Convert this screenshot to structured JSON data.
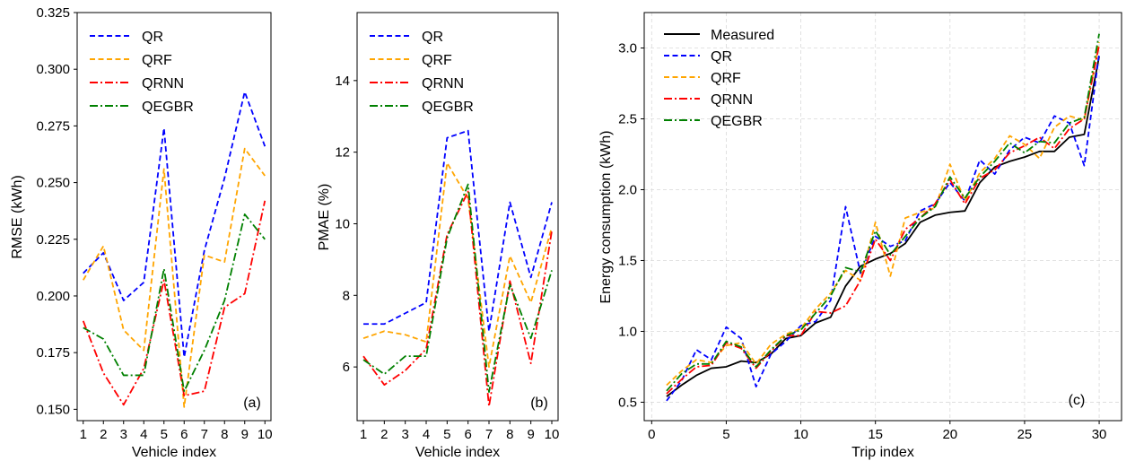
{
  "chart_data": [
    {
      "type": "line",
      "panel": "(a)",
      "xlabel": "Vehicle index",
      "ylabel": "RMSE (kWh)",
      "xlim": [
        0.7,
        10.3
      ],
      "ylim": [
        0.145,
        0.325
      ],
      "xticks": [
        1,
        2,
        3,
        4,
        5,
        6,
        7,
        8,
        9,
        10
      ],
      "yticks": [
        0.15,
        0.175,
        0.2,
        0.225,
        0.25,
        0.275,
        0.3,
        0.325
      ],
      "ytick_labels": [
        "0.150",
        "0.175",
        "0.200",
        "0.225",
        "0.250",
        "0.275",
        "0.300",
        "0.325"
      ],
      "grid": false,
      "legend": "top-left",
      "x": [
        1,
        2,
        3,
        4,
        5,
        6,
        7,
        8,
        9,
        10
      ],
      "series": [
        {
          "name": "QR",
          "color": "#0000ff",
          "dash": "dashed",
          "values": [
            0.21,
            0.219,
            0.198,
            0.206,
            0.274,
            0.173,
            0.22,
            0.252,
            0.29,
            0.266
          ]
        },
        {
          "name": "QRF",
          "color": "#ffa500",
          "dash": "dashed",
          "values": [
            0.207,
            0.222,
            0.185,
            0.176,
            0.256,
            0.151,
            0.218,
            0.215,
            0.265,
            0.253
          ]
        },
        {
          "name": "QRNN",
          "color": "#ff0000",
          "dash": "dashdot",
          "values": [
            0.189,
            0.166,
            0.152,
            0.168,
            0.207,
            0.156,
            0.158,
            0.195,
            0.201,
            0.242
          ]
        },
        {
          "name": "QEGBR",
          "color": "#008000",
          "dash": "dashdot",
          "values": [
            0.186,
            0.181,
            0.165,
            0.165,
            0.212,
            0.158,
            0.176,
            0.198,
            0.236,
            0.225
          ]
        }
      ]
    },
    {
      "type": "line",
      "panel": "(b)",
      "xlabel": "Vehicle index",
      "ylabel": "PMAE (%)",
      "xlim": [
        0.7,
        10.3
      ],
      "ylim": [
        4.5,
        15.9
      ],
      "xticks": [
        1,
        2,
        3,
        4,
        5,
        6,
        7,
        8,
        9,
        10
      ],
      "yticks": [
        6,
        8,
        10,
        12,
        14
      ],
      "ytick_labels": [
        "6",
        "8",
        "10",
        "12",
        "14"
      ],
      "grid": false,
      "legend": "top-left",
      "x": [
        1,
        2,
        3,
        4,
        5,
        6,
        7,
        8,
        9,
        10
      ],
      "series": [
        {
          "name": "QR",
          "color": "#0000ff",
          "dash": "dashed",
          "values": [
            7.2,
            7.2,
            7.5,
            7.8,
            12.4,
            12.6,
            7.0,
            10.6,
            8.5,
            10.6
          ]
        },
        {
          "name": "QRF",
          "color": "#ffa500",
          "dash": "dashed",
          "values": [
            6.8,
            7.0,
            6.9,
            6.7,
            11.7,
            10.7,
            6.0,
            9.1,
            7.8,
            9.9
          ]
        },
        {
          "name": "QRNN",
          "color": "#ff0000",
          "dash": "dashdot",
          "values": [
            6.3,
            5.5,
            5.9,
            6.5,
            9.7,
            10.9,
            4.9,
            8.4,
            6.1,
            9.8
          ]
        },
        {
          "name": "QEGBR",
          "color": "#008000",
          "dash": "dashdot",
          "values": [
            6.2,
            5.8,
            6.3,
            6.3,
            9.6,
            11.1,
            5.3,
            8.3,
            6.8,
            8.7
          ]
        }
      ]
    },
    {
      "type": "line",
      "panel": "(c)",
      "xlabel": "Trip index",
      "ylabel": "Energy consumption (kWh)",
      "xlim": [
        -0.5,
        31.5
      ],
      "ylim": [
        0.37,
        3.25
      ],
      "xticks": [
        0,
        5,
        10,
        15,
        20,
        25,
        30
      ],
      "yticks": [
        0.5,
        1.0,
        1.5,
        2.0,
        2.5,
        3.0
      ],
      "ytick_labels": [
        "0.5",
        "1.0",
        "1.5",
        "2.0",
        "2.5",
        "3.0"
      ],
      "grid": true,
      "legend": "top-left",
      "x": [
        1,
        2,
        3,
        4,
        5,
        6,
        7,
        8,
        9,
        10,
        11,
        12,
        13,
        14,
        15,
        16,
        17,
        18,
        19,
        20,
        21,
        22,
        23,
        24,
        25,
        26,
        27,
        28,
        29,
        30
      ],
      "series": [
        {
          "name": "Measured",
          "color": "#000000",
          "dash": "solid",
          "values": [
            0.54,
            0.62,
            0.69,
            0.74,
            0.75,
            0.79,
            0.78,
            0.84,
            0.95,
            0.97,
            1.06,
            1.1,
            1.32,
            1.46,
            1.51,
            1.55,
            1.62,
            1.77,
            1.82,
            1.84,
            1.85,
            2.05,
            2.16,
            2.2,
            2.23,
            2.27,
            2.27,
            2.37,
            2.39,
            2.94
          ]
        },
        {
          "name": "QR",
          "color": "#0000ff",
          "dash": "dashed",
          "values": [
            0.51,
            0.65,
            0.87,
            0.8,
            1.03,
            0.95,
            0.61,
            0.84,
            0.93,
            1.04,
            1.07,
            1.22,
            1.88,
            1.41,
            1.67,
            1.6,
            1.64,
            1.85,
            1.9,
            2.05,
            1.92,
            2.21,
            2.11,
            2.28,
            2.37,
            2.33,
            2.52,
            2.47,
            2.17,
            2.96
          ]
        },
        {
          "name": "QRF",
          "color": "#ffa500",
          "dash": "dashed",
          "values": [
            0.62,
            0.72,
            0.8,
            0.78,
            0.9,
            0.92,
            0.77,
            0.91,
            0.98,
            1.02,
            1.16,
            1.27,
            1.43,
            1.36,
            1.77,
            1.39,
            1.8,
            1.84,
            1.87,
            2.18,
            1.92,
            2.12,
            2.22,
            2.38,
            2.32,
            2.22,
            2.44,
            2.52,
            2.49,
            3.04
          ]
        },
        {
          "name": "QRNN",
          "color": "#ff0000",
          "dash": "dashdot",
          "values": [
            0.56,
            0.66,
            0.75,
            0.76,
            0.92,
            0.88,
            0.74,
            0.86,
            0.97,
            0.97,
            1.14,
            1.13,
            1.18,
            1.36,
            1.65,
            1.5,
            1.72,
            1.8,
            1.9,
            2.07,
            1.9,
            2.08,
            2.14,
            2.26,
            2.31,
            2.37,
            2.29,
            2.43,
            2.5,
            3.02
          ]
        },
        {
          "name": "QEGBR",
          "color": "#008000",
          "dash": "dashdot",
          "values": [
            0.58,
            0.7,
            0.77,
            0.77,
            0.93,
            0.89,
            0.75,
            0.87,
            0.97,
            1.01,
            1.13,
            1.25,
            1.45,
            1.42,
            1.71,
            1.54,
            1.67,
            1.8,
            1.88,
            2.09,
            1.94,
            2.09,
            2.2,
            2.33,
            2.26,
            2.34,
            2.33,
            2.47,
            2.51,
            3.1
          ]
        }
      ]
    }
  ]
}
